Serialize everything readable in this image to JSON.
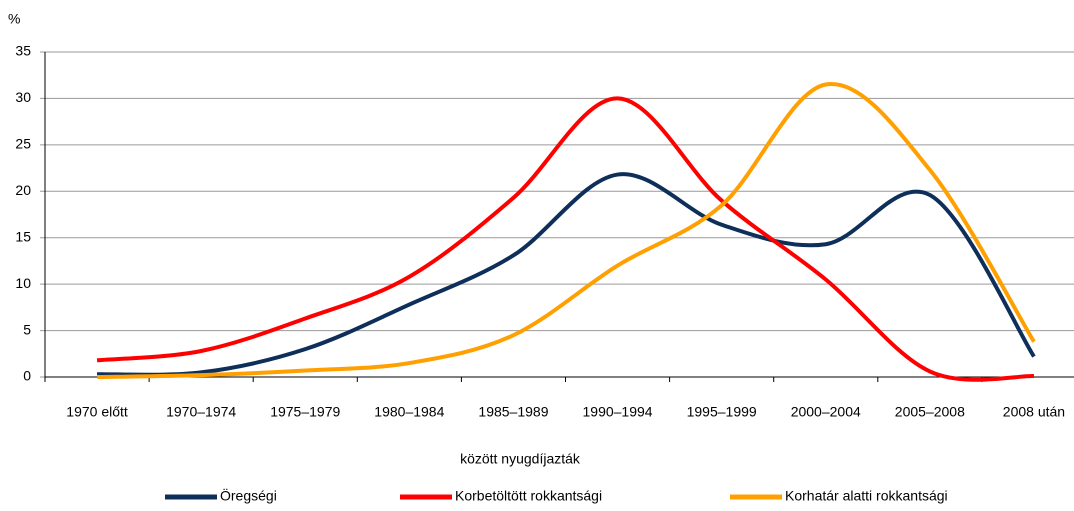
{
  "chart_data": {
    "type": "line",
    "y_unit": "%",
    "x_label": "között nyugdíjazták",
    "categories": [
      "1970 előtt",
      "1970–1974",
      "1975–1979",
      "1980–1984",
      "1985–1989",
      "1990–1994",
      "1995–1999",
      "2000–2004",
      "2005–2008",
      "2008 után"
    ],
    "series": [
      {
        "name": "Öregségi",
        "color": "#0e2f5a",
        "values": [
          0.3,
          0.5,
          3,
          7.8,
          13.1,
          21.8,
          16.4,
          14.3,
          19.6,
          2.2
        ]
      },
      {
        "name": "Korbetöltött rokkantsági",
        "color": "#ff0000",
        "values": [
          1.8,
          2.8,
          6.3,
          10.8,
          19.3,
          30,
          19,
          10.5,
          0.6,
          0.1
        ]
      },
      {
        "name": "Korhatár alatti rokkantsági",
        "color": "#ffa000",
        "values": [
          0,
          0.2,
          0.7,
          1.5,
          4.5,
          12,
          18.5,
          31.5,
          22.3,
          3.8
        ]
      }
    ],
    "ylim": [
      0,
      35
    ],
    "yticks": [
      0,
      5,
      10,
      15,
      20,
      25,
      30,
      35
    ],
    "grid": true,
    "legend": "bottom"
  }
}
